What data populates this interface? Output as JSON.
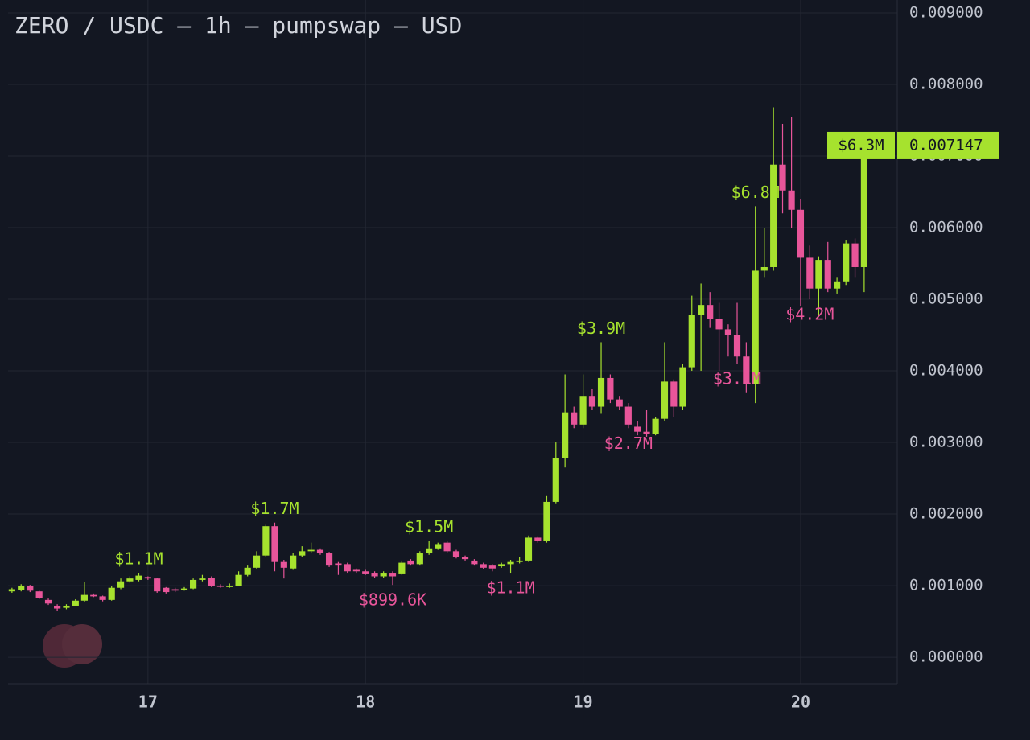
{
  "chart_data": {
    "type": "candlestick",
    "title": "ZERO / USDC — 1h — pumpswap — USD",
    "x": [
      16.375,
      16.417,
      16.458,
      16.5,
      16.542,
      16.583,
      16.625,
      16.667,
      16.708,
      16.75,
      16.792,
      16.833,
      16.875,
      16.917,
      16.958,
      17,
      17.042,
      17.083,
      17.125,
      17.167,
      17.208,
      17.25,
      17.292,
      17.333,
      17.375,
      17.417,
      17.458,
      17.5,
      17.542,
      17.583,
      17.625,
      17.667,
      17.708,
      17.75,
      17.792,
      17.833,
      17.875,
      17.917,
      17.958,
      18,
      18.042,
      18.083,
      18.125,
      18.167,
      18.208,
      18.25,
      18.292,
      18.333,
      18.375,
      18.417,
      18.458,
      18.5,
      18.542,
      18.583,
      18.625,
      18.667,
      18.708,
      18.75,
      18.792,
      18.833,
      18.875,
      18.917,
      18.958,
      19,
      19.042,
      19.083,
      19.125,
      19.167,
      19.208,
      19.25,
      19.292,
      19.333,
      19.375,
      19.417,
      19.458,
      19.5,
      19.542,
      19.583,
      19.625,
      19.667,
      19.708,
      19.75,
      19.792,
      19.833,
      19.875,
      19.917,
      19.958,
      20,
      20.042,
      20.083,
      20.125,
      20.167,
      20.208,
      20.25,
      20.292
    ],
    "series": [
      {
        "up_color": "#a6e22e",
        "down_color": "#e8559a",
        "open": [
          0.00092,
          0.00094,
          0.001,
          0.00092,
          0.0008,
          0.00072,
          0.00069,
          0.00072,
          0.00079,
          0.00087,
          0.00085,
          0.0008,
          0.00097,
          0.00106,
          0.00108,
          0.00112,
          0.0011,
          0.00097,
          0.00095,
          0.00094,
          0.00096,
          0.00108,
          0.00111,
          0.001,
          0.00098,
          0.001,
          0.00115,
          0.00125,
          0.00142,
          0.00183,
          0.00133,
          0.00124,
          0.00142,
          0.00148,
          0.0015,
          0.00145,
          0.00131,
          0.0013,
          0.00122,
          0.0012,
          0.00118,
          0.00113,
          0.00118,
          0.00117,
          0.00135,
          0.0013,
          0.00145,
          0.00152,
          0.0016,
          0.00148,
          0.0014,
          0.00135,
          0.0013,
          0.00128,
          0.00127,
          0.0013,
          0.00133,
          0.00135,
          0.00167,
          0.00163,
          0.00217,
          0.00278,
          0.00342,
          0.00325,
          0.00365,
          0.0035,
          0.0039,
          0.0036,
          0.0035,
          0.00322,
          0.00315,
          0.00312,
          0.00333,
          0.00385,
          0.0035,
          0.00405,
          0.00478,
          0.00492,
          0.00472,
          0.00458,
          0.0045,
          0.0042,
          0.00382,
          0.0054,
          0.00545,
          0.00688,
          0.00652,
          0.00625,
          0.00558,
          0.00515,
          0.00555,
          0.00515,
          0.00525,
          0.00578,
          0.00545
        ],
        "high": [
          0.00097,
          0.00102,
          0.00101,
          0.00093,
          0.00082,
          0.00074,
          0.00074,
          0.00081,
          0.00105,
          0.00089,
          0.00086,
          0.00099,
          0.0011,
          0.00113,
          0.00118,
          0.00113,
          0.00111,
          0.00098,
          0.00097,
          0.00098,
          0.0011,
          0.00115,
          0.00113,
          0.00102,
          0.00103,
          0.0012,
          0.00128,
          0.00148,
          0.00185,
          0.00188,
          0.00136,
          0.00145,
          0.00155,
          0.0016,
          0.00152,
          0.00147,
          0.00133,
          0.00132,
          0.00124,
          0.00122,
          0.0012,
          0.0012,
          0.0012,
          0.00135,
          0.00137,
          0.00148,
          0.00163,
          0.0016,
          0.00162,
          0.0015,
          0.00142,
          0.00137,
          0.00132,
          0.0013,
          0.00132,
          0.00136,
          0.0014,
          0.0017,
          0.00169,
          0.00225,
          0.003,
          0.00395,
          0.0035,
          0.00395,
          0.00375,
          0.0044,
          0.00395,
          0.00365,
          0.00355,
          0.0033,
          0.00345,
          0.00335,
          0.0044,
          0.00388,
          0.0041,
          0.00505,
          0.00522,
          0.0051,
          0.00495,
          0.00465,
          0.00495,
          0.0044,
          0.0063,
          0.006,
          0.00768,
          0.00745,
          0.00755,
          0.0064,
          0.00575,
          0.0056,
          0.0058,
          0.0053,
          0.00582,
          0.00585,
          0.007147
        ],
        "low": [
          0.0009,
          0.00092,
          0.00091,
          0.00081,
          0.00073,
          0.00065,
          0.00067,
          0.00071,
          0.00077,
          0.00084,
          0.00078,
          0.00079,
          0.00095,
          0.00104,
          0.00106,
          0.00108,
          0.0009,
          0.00089,
          0.00091,
          0.00093,
          0.00095,
          0.00106,
          0.00098,
          0.00097,
          0.00097,
          0.00099,
          0.00113,
          0.00123,
          0.0014,
          0.0012,
          0.0011,
          0.00122,
          0.0014,
          0.00146,
          0.00143,
          0.00126,
          0.00115,
          0.00118,
          0.00118,
          0.00115,
          0.00111,
          0.00111,
          0.00101,
          0.00115,
          0.00128,
          0.00128,
          0.00143,
          0.0015,
          0.00146,
          0.00138,
          0.00135,
          0.00128,
          0.00123,
          0.0012,
          0.00125,
          0.00118,
          0.00131,
          0.00133,
          0.0016,
          0.0016,
          0.00215,
          0.00265,
          0.0032,
          0.0032,
          0.00345,
          0.0034,
          0.00355,
          0.00345,
          0.0032,
          0.0031,
          0.00308,
          0.0031,
          0.0033,
          0.00335,
          0.00345,
          0.004,
          0.004,
          0.0046,
          0.004,
          0.0042,
          0.0041,
          0.0037,
          0.00355,
          0.0053,
          0.0054,
          0.0062,
          0.006,
          0.0049,
          0.005,
          0.00475,
          0.0051,
          0.00508,
          0.0052,
          0.0053,
          0.0051
        ],
        "close": [
          0.00095,
          0.001,
          0.00093,
          0.00083,
          0.00075,
          0.00068,
          0.00072,
          0.00079,
          0.00087,
          0.00085,
          0.0008,
          0.00097,
          0.00106,
          0.0011,
          0.00114,
          0.0011,
          0.00092,
          0.00091,
          0.00093,
          0.00096,
          0.00108,
          0.0011,
          0.001,
          0.00099,
          0.001,
          0.00115,
          0.00125,
          0.00142,
          0.00183,
          0.00133,
          0.00125,
          0.00142,
          0.00148,
          0.0015,
          0.00145,
          0.00128,
          0.00128,
          0.0012,
          0.0012,
          0.00117,
          0.00113,
          0.00118,
          0.00113,
          0.00132,
          0.0013,
          0.00145,
          0.00152,
          0.00158,
          0.00148,
          0.0014,
          0.00137,
          0.0013,
          0.00125,
          0.00124,
          0.0013,
          0.00133,
          0.00135,
          0.00167,
          0.00163,
          0.00217,
          0.00278,
          0.00342,
          0.00325,
          0.00365,
          0.0035,
          0.0039,
          0.0036,
          0.0035,
          0.00325,
          0.00315,
          0.00312,
          0.00333,
          0.00385,
          0.0035,
          0.00405,
          0.00478,
          0.00492,
          0.00472,
          0.00458,
          0.0045,
          0.0042,
          0.00382,
          0.0054,
          0.00545,
          0.00688,
          0.00652,
          0.00625,
          0.00558,
          0.00515,
          0.00555,
          0.00515,
          0.00525,
          0.00578,
          0.00545,
          0.007147
        ]
      }
    ],
    "annotations": [
      {
        "text": "$1.1M",
        "x": 16.958,
        "color": "#a6e22e"
      },
      {
        "text": "$1.7M",
        "x": 17.583,
        "color": "#a6e22e"
      },
      {
        "text": "$899.6K",
        "x": 18.125,
        "color": "#e8559a"
      },
      {
        "text": "$1.5M",
        "x": 18.292,
        "color": "#a6e22e"
      },
      {
        "text": "$1.1M",
        "x": 18.667,
        "color": "#e8559a"
      },
      {
        "text": "$3.9M",
        "x": 19.083,
        "color": "#a6e22e"
      },
      {
        "text": "$2.7M",
        "x": 19.208,
        "color": "#e8559a"
      },
      {
        "text": "$3.1M",
        "x": 19.708,
        "color": "#e8559a"
      },
      {
        "text": "$6.8M",
        "x": 19.792,
        "color": "#a6e22e"
      },
      {
        "text": "$4.2M",
        "x": 20.042,
        "color": "#e8559a"
      }
    ],
    "last_market_cap_label": "$6.3M",
    "xlim": [
      16.357,
      20.444
    ],
    "xticks": [
      17,
      18,
      19,
      20
    ],
    "ylim": [
      -0.00037,
      0.00918
    ],
    "yticks": [
      {
        "value": 0,
        "label": "0.000000"
      },
      {
        "value": 0.001,
        "label": "0.001000"
      },
      {
        "value": 0.002,
        "label": "0.002000"
      },
      {
        "value": 0.003,
        "label": "0.003000"
      },
      {
        "value": 0.004,
        "label": "0.004000"
      },
      {
        "value": 0.005,
        "label": "0.005000"
      },
      {
        "value": 0.006,
        "label": "0.006000"
      },
      {
        "value": 0.007,
        "label": "0.007000"
      },
      {
        "value": 0.008,
        "label": "0.008000"
      },
      {
        "value": 0.009,
        "label": "0.009000"
      }
    ],
    "grid": true
  }
}
